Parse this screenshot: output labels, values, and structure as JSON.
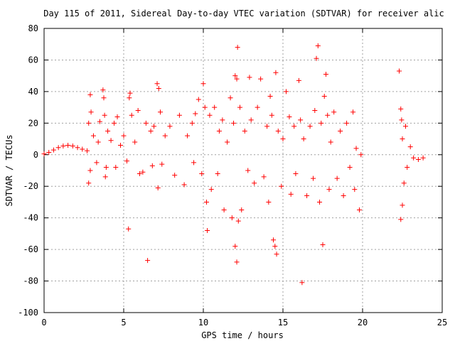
{
  "chart_data": {
    "type": "scatter",
    "title": "Day 115 of 2011, Sidereal Day-to-day VTEC variation (SDTVAR) for receiver alic",
    "xlabel": "GPS time / hours",
    "ylabel": "SDTVAR / TECUs",
    "xlim": [
      0,
      25
    ],
    "ylim": [
      -100,
      80
    ],
    "x_ticks": [
      0,
      5,
      10,
      15,
      20,
      25
    ],
    "y_ticks": [
      80,
      60,
      40,
      20,
      0,
      -20,
      -40,
      -60,
      -80,
      -100
    ],
    "x_tick_labels": [
      "0",
      "5",
      "10",
      "15",
      "20",
      "25"
    ],
    "y_tick_labels": [
      "80",
      "60",
      "40",
      "20",
      "0",
      "-20",
      "-40",
      "-60",
      "-80",
      "-100"
    ],
    "grid": true,
    "legend": "none",
    "marker": "plus",
    "color": "#ff0000",
    "series": [
      {
        "points": [
          [
            0.0,
            0.5
          ],
          [
            0.3,
            1.5
          ],
          [
            0.6,
            3.0
          ],
          [
            0.9,
            4.5
          ],
          [
            1.2,
            5.5
          ],
          [
            1.5,
            6.0
          ],
          [
            1.8,
            5.5
          ],
          [
            2.1,
            4.5
          ],
          [
            2.4,
            3.5
          ],
          [
            2.7,
            2.5
          ],
          [
            2.8,
            20.0
          ],
          [
            2.9,
            38.0
          ],
          [
            2.95,
            27.0
          ],
          [
            2.8,
            -18.0
          ],
          [
            2.9,
            -10.0
          ],
          [
            3.1,
            12.0
          ],
          [
            3.3,
            -5.0
          ],
          [
            3.4,
            8.0
          ],
          [
            3.5,
            21.0
          ],
          [
            3.7,
            41.0
          ],
          [
            3.75,
            36.0
          ],
          [
            3.8,
            25.0
          ],
          [
            3.85,
            -14.0
          ],
          [
            3.9,
            -8.0
          ],
          [
            4.0,
            15.0
          ],
          [
            4.2,
            9.0
          ],
          [
            4.4,
            20.0
          ],
          [
            4.6,
            24.0
          ],
          [
            4.5,
            -8.0
          ],
          [
            4.8,
            6.0
          ],
          [
            5.0,
            12.0
          ],
          [
            5.2,
            -4.0
          ],
          [
            5.4,
            39.0
          ],
          [
            5.35,
            36.0
          ],
          [
            5.3,
            -47.0
          ],
          [
            5.5,
            25.0
          ],
          [
            5.7,
            8.0
          ],
          [
            5.9,
            28.0
          ],
          [
            6.0,
            -12.0
          ],
          [
            6.2,
            -11.0
          ],
          [
            6.4,
            20.0
          ],
          [
            6.5,
            -67.0
          ],
          [
            6.7,
            15.0
          ],
          [
            6.9,
            18.0
          ],
          [
            6.8,
            -7.0
          ],
          [
            7.1,
            45.0
          ],
          [
            7.2,
            42.0
          ],
          [
            7.3,
            27.0
          ],
          [
            7.15,
            -21.0
          ],
          [
            7.4,
            -6.0
          ],
          [
            7.6,
            12.0
          ],
          [
            7.9,
            18.0
          ],
          [
            8.2,
            -13.0
          ],
          [
            8.5,
            25.0
          ],
          [
            8.8,
            -19.0
          ],
          [
            9.0,
            12.0
          ],
          [
            9.3,
            20.0
          ],
          [
            9.5,
            26.0
          ],
          [
            9.4,
            -5.0
          ],
          [
            9.7,
            35.0
          ],
          [
            9.9,
            -12.0
          ],
          [
            10.0,
            45.0
          ],
          [
            10.1,
            30.0
          ],
          [
            10.2,
            -30.0
          ],
          [
            10.25,
            -48.0
          ],
          [
            10.4,
            25.0
          ],
          [
            10.5,
            -22.0
          ],
          [
            10.7,
            30.0
          ],
          [
            10.9,
            -12.0
          ],
          [
            11.0,
            15.0
          ],
          [
            11.2,
            22.0
          ],
          [
            11.3,
            -35.0
          ],
          [
            11.5,
            8.0
          ],
          [
            11.7,
            36.0
          ],
          [
            11.8,
            -40.0
          ],
          [
            11.9,
            20.0
          ],
          [
            12.0,
            50.0
          ],
          [
            12.1,
            48.0
          ],
          [
            12.15,
            68.0
          ],
          [
            12.0,
            -58.0
          ],
          [
            12.1,
            -68.0
          ],
          [
            12.2,
            -42.0
          ],
          [
            12.3,
            30.0
          ],
          [
            12.4,
            -35.0
          ],
          [
            12.6,
            15.0
          ],
          [
            12.8,
            -10.0
          ],
          [
            12.9,
            49.0
          ],
          [
            13.0,
            22.0
          ],
          [
            13.2,
            -18.0
          ],
          [
            13.4,
            30.0
          ],
          [
            13.6,
            48.0
          ],
          [
            13.8,
            -14.0
          ],
          [
            14.0,
            18.0
          ],
          [
            14.1,
            -30.0
          ],
          [
            14.2,
            37.0
          ],
          [
            14.3,
            25.0
          ],
          [
            14.4,
            -54.0
          ],
          [
            14.5,
            -58.0
          ],
          [
            14.6,
            -63.0
          ],
          [
            14.55,
            52.0
          ],
          [
            14.7,
            15.0
          ],
          [
            14.9,
            -20.0
          ],
          [
            15.0,
            10.0
          ],
          [
            15.2,
            40.0
          ],
          [
            15.4,
            24.0
          ],
          [
            15.5,
            -25.0
          ],
          [
            15.7,
            18.0
          ],
          [
            15.8,
            -12.0
          ],
          [
            16.0,
            47.0
          ],
          [
            16.1,
            22.0
          ],
          [
            16.2,
            -81.0
          ],
          [
            16.3,
            10.0
          ],
          [
            16.5,
            -26.0
          ],
          [
            16.7,
            18.0
          ],
          [
            16.9,
            -15.0
          ],
          [
            17.0,
            28.0
          ],
          [
            17.1,
            61.0
          ],
          [
            17.2,
            69.0
          ],
          [
            17.3,
            -30.0
          ],
          [
            17.4,
            20.0
          ],
          [
            17.5,
            -57.0
          ],
          [
            17.6,
            37.0
          ],
          [
            17.7,
            51.0
          ],
          [
            17.8,
            25.0
          ],
          [
            17.9,
            -22.0
          ],
          [
            18.0,
            8.0
          ],
          [
            18.2,
            27.0
          ],
          [
            18.4,
            -15.0
          ],
          [
            18.6,
            15.0
          ],
          [
            18.8,
            -26.0
          ],
          [
            19.0,
            20.0
          ],
          [
            19.2,
            -8.0
          ],
          [
            19.4,
            27.0
          ],
          [
            19.5,
            -22.0
          ],
          [
            19.6,
            4.0
          ],
          [
            19.8,
            -35.0
          ],
          [
            19.9,
            0.0
          ],
          [
            22.3,
            53.0
          ],
          [
            22.4,
            29.0
          ],
          [
            22.45,
            22.0
          ],
          [
            22.5,
            10.0
          ],
          [
            22.4,
            -41.0
          ],
          [
            22.5,
            -32.0
          ],
          [
            22.6,
            -18.0
          ],
          [
            22.7,
            18.0
          ],
          [
            22.8,
            -8.0
          ],
          [
            23.0,
            5.0
          ],
          [
            23.2,
            -2.0
          ],
          [
            23.5,
            -3.0
          ],
          [
            23.8,
            -2.0
          ]
        ]
      }
    ]
  }
}
